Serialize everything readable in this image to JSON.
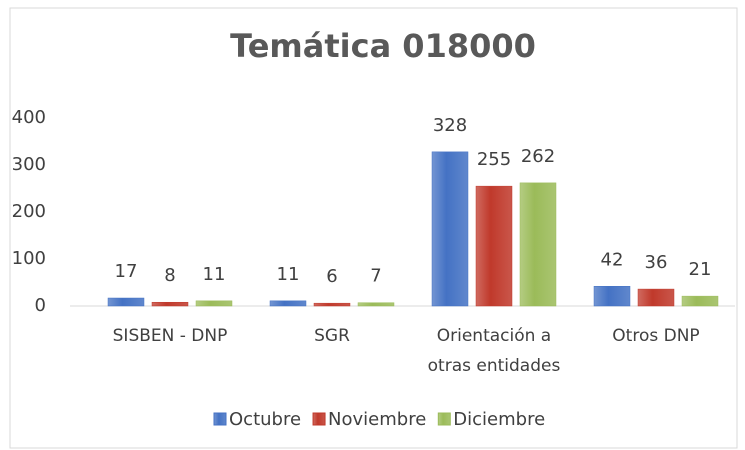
{
  "chart_data": {
    "type": "bar",
    "title": "Temática 018000",
    "categories": [
      "SISBEN - DNP",
      "SGR",
      "Orientación a otras entidades",
      "Otros DNP"
    ],
    "series": [
      {
        "name": "Octubre",
        "color": "#4472c4",
        "values": [
          17,
          11,
          328,
          42
        ]
      },
      {
        "name": "Noviembre",
        "color": "#c0392b",
        "values": [
          8,
          6,
          255,
          36
        ]
      },
      {
        "name": "Diciembre",
        "color": "#9bbb59",
        "values": [
          11,
          7,
          262,
          21
        ]
      }
    ],
    "ylim": [
      0,
      400
    ],
    "yticks": [
      0,
      100,
      200,
      300,
      400
    ],
    "grid": false,
    "legend": "bottom"
  }
}
